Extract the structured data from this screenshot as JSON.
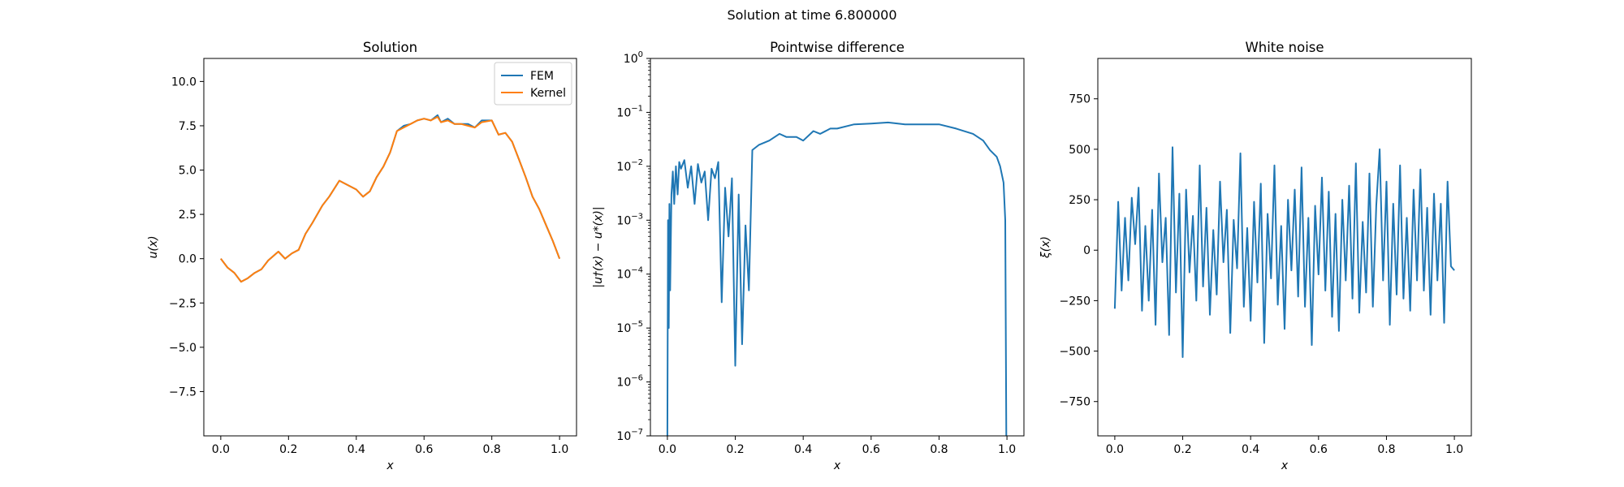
{
  "figure": {
    "suptitle": "Solution at time 6.800000",
    "colors": {
      "fem": "#1f77b4",
      "kernel": "#ff7f0e",
      "noise": "#1f77b4",
      "diff": "#1f77b4"
    }
  },
  "chart_data": [
    {
      "type": "line",
      "title": "Solution",
      "xlabel": "x",
      "ylabel": "u(x)",
      "xlim": [
        -0.05,
        1.05
      ],
      "ylim": [
        -10,
        11.3
      ],
      "xticks": [
        0.0,
        0.2,
        0.4,
        0.6,
        0.8,
        1.0
      ],
      "xtick_labels": [
        "0.0",
        "0.2",
        "0.4",
        "0.6",
        "0.8",
        "1.0"
      ],
      "yticks": [
        -7.5,
        -5.0,
        -2.5,
        0.0,
        2.5,
        5.0,
        7.5,
        10.0
      ],
      "ytick_labels": [
        "−7.5",
        "−5.0",
        "−2.5",
        "0.0",
        "2.5",
        "5.0",
        "7.5",
        "10.0"
      ],
      "legend": {
        "position": "upper right",
        "entries": [
          "FEM",
          "Kernel"
        ]
      },
      "series": [
        {
          "name": "FEM",
          "color": "#1f77b4",
          "x": [
            0.0,
            0.02,
            0.04,
            0.06,
            0.08,
            0.1,
            0.12,
            0.14,
            0.17,
            0.19,
            0.21,
            0.23,
            0.25,
            0.27,
            0.3,
            0.32,
            0.35,
            0.37,
            0.4,
            0.42,
            0.44,
            0.46,
            0.48,
            0.5,
            0.52,
            0.54,
            0.56,
            0.58,
            0.6,
            0.62,
            0.64,
            0.65,
            0.67,
            0.69,
            0.71,
            0.73,
            0.75,
            0.77,
            0.8,
            0.82,
            0.84,
            0.86,
            0.88,
            0.9,
            0.92,
            0.94,
            0.96,
            0.98,
            1.0
          ],
          "y": [
            0.0,
            -0.5,
            -0.8,
            -1.3,
            -1.1,
            -0.8,
            -0.6,
            -0.1,
            0.4,
            0.0,
            0.3,
            0.5,
            1.4,
            2.0,
            3.0,
            3.5,
            4.4,
            4.2,
            3.9,
            3.5,
            3.8,
            4.6,
            5.2,
            6.0,
            7.2,
            7.5,
            7.6,
            7.8,
            7.9,
            7.8,
            8.1,
            7.7,
            7.9,
            7.6,
            7.6,
            7.6,
            7.4,
            7.8,
            7.8,
            7.0,
            7.1,
            6.6,
            5.6,
            4.6,
            3.5,
            2.8,
            1.9,
            1.0,
            0.0
          ]
        },
        {
          "name": "Kernel",
          "color": "#ff7f0e",
          "x": [
            0.0,
            0.02,
            0.04,
            0.06,
            0.08,
            0.1,
            0.12,
            0.14,
            0.17,
            0.19,
            0.21,
            0.23,
            0.25,
            0.27,
            0.3,
            0.32,
            0.35,
            0.37,
            0.4,
            0.42,
            0.44,
            0.46,
            0.48,
            0.5,
            0.52,
            0.54,
            0.56,
            0.58,
            0.6,
            0.62,
            0.64,
            0.65,
            0.67,
            0.69,
            0.71,
            0.73,
            0.75,
            0.77,
            0.8,
            0.82,
            0.84,
            0.86,
            0.88,
            0.9,
            0.92,
            0.94,
            0.96,
            0.98,
            1.0
          ],
          "y": [
            0.0,
            -0.5,
            -0.8,
            -1.3,
            -1.1,
            -0.8,
            -0.6,
            -0.1,
            0.4,
            0.0,
            0.3,
            0.5,
            1.4,
            2.0,
            3.0,
            3.5,
            4.4,
            4.2,
            3.9,
            3.5,
            3.8,
            4.6,
            5.2,
            6.0,
            7.2,
            7.4,
            7.6,
            7.8,
            7.9,
            7.8,
            8.0,
            7.7,
            7.8,
            7.6,
            7.6,
            7.5,
            7.4,
            7.7,
            7.8,
            7.0,
            7.1,
            6.6,
            5.6,
            4.6,
            3.5,
            2.8,
            1.9,
            1.0,
            0.0
          ]
        }
      ]
    },
    {
      "type": "line",
      "title": "Pointwise difference",
      "xlabel": "x",
      "ylabel": "|u†(x) − u*(x)|",
      "yscale": "log",
      "xlim": [
        -0.05,
        1.05
      ],
      "ylim": [
        1e-07,
        1
      ],
      "xticks": [
        0.0,
        0.2,
        0.4,
        0.6,
        0.8,
        1.0
      ],
      "xtick_labels": [
        "0.0",
        "0.2",
        "0.4",
        "0.6",
        "0.8",
        "1.0"
      ],
      "yticks": [
        1e-07,
        1e-06,
        1e-05,
        0.0001,
        0.001,
        0.01,
        0.1,
        1
      ],
      "ytick_labels": [
        [
          "10",
          "−7"
        ],
        [
          "10",
          "−6"
        ],
        [
          "10",
          "−5"
        ],
        [
          "10",
          "−4"
        ],
        [
          "10",
          "−3"
        ],
        [
          "10",
          "−2"
        ],
        [
          "10",
          "−1"
        ],
        [
          "10",
          "0"
        ]
      ],
      "series": [
        {
          "name": "",
          "color": "#1f77b4",
          "x": [
            0.0,
            0.002,
            0.004,
            0.006,
            0.008,
            0.012,
            0.016,
            0.02,
            0.025,
            0.03,
            0.035,
            0.04,
            0.05,
            0.06,
            0.07,
            0.08,
            0.09,
            0.1,
            0.11,
            0.12,
            0.13,
            0.14,
            0.15,
            0.16,
            0.17,
            0.18,
            0.19,
            0.2,
            0.21,
            0.22,
            0.23,
            0.24,
            0.25,
            0.27,
            0.3,
            0.33,
            0.35,
            0.38,
            0.4,
            0.43,
            0.45,
            0.48,
            0.5,
            0.55,
            0.6,
            0.65,
            0.7,
            0.75,
            0.8,
            0.85,
            0.9,
            0.93,
            0.95,
            0.97,
            0.98,
            0.99,
            0.995,
            0.998,
            1.0
          ],
          "y": [
            1e-07,
            0.001,
            1e-05,
            0.002,
            5e-05,
            0.003,
            0.008,
            0.002,
            0.01,
            0.003,
            0.012,
            0.009,
            0.013,
            0.004,
            0.01,
            0.002,
            0.011,
            0.005,
            0.008,
            0.001,
            0.009,
            0.006,
            0.012,
            3e-05,
            0.004,
            0.0005,
            0.006,
            2e-06,
            0.003,
            5e-06,
            0.0008,
            5e-05,
            0.02,
            0.025,
            0.03,
            0.04,
            0.035,
            0.035,
            0.03,
            0.045,
            0.04,
            0.05,
            0.05,
            0.06,
            0.062,
            0.065,
            0.06,
            0.06,
            0.06,
            0.05,
            0.04,
            0.03,
            0.02,
            0.015,
            0.01,
            0.005,
            0.001,
            1e-07,
            1e-07
          ]
        }
      ]
    },
    {
      "type": "line",
      "title": "White noise",
      "xlabel": "x",
      "ylabel": "ξ(x)",
      "xlim": [
        -0.05,
        1.05
      ],
      "ylim": [
        -920,
        950
      ],
      "xticks": [
        0.0,
        0.2,
        0.4,
        0.6,
        0.8,
        1.0
      ],
      "xtick_labels": [
        "0.0",
        "0.2",
        "0.4",
        "0.6",
        "0.8",
        "1.0"
      ],
      "yticks": [
        -750,
        -500,
        -250,
        0,
        250,
        500,
        750
      ],
      "ytick_labels": [
        "−750",
        "−500",
        "−250",
        "0",
        "250",
        "500",
        "750"
      ],
      "series": [
        {
          "name": "",
          "color": "#1f77b4",
          "x": [
            0.0,
            0.01,
            0.02,
            0.03,
            0.04,
            0.05,
            0.06,
            0.07,
            0.08,
            0.09,
            0.1,
            0.11,
            0.12,
            0.13,
            0.14,
            0.15,
            0.16,
            0.17,
            0.18,
            0.19,
            0.2,
            0.21,
            0.22,
            0.23,
            0.24,
            0.25,
            0.26,
            0.27,
            0.28,
            0.29,
            0.3,
            0.31,
            0.32,
            0.33,
            0.34,
            0.35,
            0.36,
            0.37,
            0.38,
            0.39,
            0.4,
            0.41,
            0.42,
            0.43,
            0.44,
            0.45,
            0.46,
            0.47,
            0.48,
            0.49,
            0.5,
            0.51,
            0.52,
            0.53,
            0.54,
            0.55,
            0.56,
            0.57,
            0.58,
            0.59,
            0.6,
            0.61,
            0.62,
            0.63,
            0.64,
            0.65,
            0.66,
            0.67,
            0.68,
            0.69,
            0.7,
            0.71,
            0.72,
            0.73,
            0.74,
            0.75,
            0.76,
            0.77,
            0.78,
            0.79,
            0.8,
            0.81,
            0.82,
            0.83,
            0.84,
            0.85,
            0.86,
            0.87,
            0.88,
            0.89,
            0.9,
            0.91,
            0.92,
            0.93,
            0.94,
            0.95,
            0.96,
            0.97,
            0.98,
            0.99,
            1.0
          ],
          "y": [
            -290,
            240,
            -200,
            160,
            -150,
            260,
            30,
            310,
            -300,
            120,
            -250,
            200,
            -370,
            380,
            -60,
            160,
            -420,
            510,
            -210,
            280,
            -530,
            300,
            -110,
            170,
            -250,
            420,
            -180,
            210,
            -320,
            100,
            -220,
            340,
            -60,
            200,
            -410,
            150,
            -90,
            480,
            -280,
            110,
            -350,
            240,
            -160,
            330,
            -460,
            180,
            -140,
            420,
            -270,
            120,
            -390,
            250,
            -100,
            300,
            -230,
            410,
            -280,
            160,
            -470,
            220,
            -120,
            360,
            -200,
            290,
            -330,
            180,
            -400,
            250,
            -150,
            320,
            -240,
            430,
            -310,
            140,
            -210,
            380,
            -280,
            220,
            500,
            -150,
            340,
            -370,
            230,
            -220,
            420,
            -240,
            160,
            -300,
            300,
            -150,
            400,
            -200,
            210,
            -320,
            280,
            -150,
            230,
            -360,
            340,
            -80,
            -100
          ]
        }
      ]
    }
  ]
}
